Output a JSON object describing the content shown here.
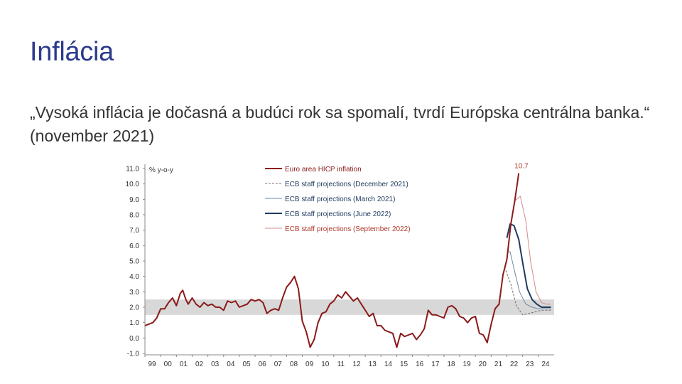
{
  "slide": {
    "title": "Inflácia",
    "quote": "„Vysoká inflácia je dočasná a budúci rok sa spomalí, tvrdí Európska centrálna banka.“ (november 2021)"
  },
  "chart_data": {
    "type": "line",
    "unit_label": "% y-o-y",
    "ylim": [
      -1.0,
      11.0
    ],
    "y_ticks": [
      "11.0",
      "10.0",
      "9.0",
      "8.0",
      "7.0",
      "6.0",
      "5.0",
      "4.0",
      "3.0",
      "2.0",
      "1.0",
      "0.0",
      "-1.0"
    ],
    "x_ticks": [
      "99",
      "00",
      "01",
      "02",
      "03",
      "04",
      "05",
      "06",
      "07",
      "08",
      "09",
      "10",
      "11",
      "12",
      "13",
      "14",
      "15",
      "16",
      "17",
      "18",
      "19",
      "20",
      "21",
      "22",
      "23",
      "24"
    ],
    "xlim": [
      1999.0,
      2025.0
    ],
    "band": {
      "from": 1.5,
      "to": 2.5,
      "color": "#d8d8d8"
    },
    "annotation": {
      "text": "10.7",
      "x": 2022.75,
      "y": 10.7,
      "color": "#b03a2e"
    },
    "legend_position": "top-center",
    "series": [
      {
        "name": "Euro area HICP inflation",
        "color": "#8b1a1a",
        "style": "solid",
        "width": 2,
        "points": [
          [
            1999.0,
            0.8
          ],
          [
            1999.25,
            0.9
          ],
          [
            1999.5,
            1.0
          ],
          [
            1999.75,
            1.3
          ],
          [
            2000.0,
            1.9
          ],
          [
            2000.25,
            1.9
          ],
          [
            2000.5,
            2.3
          ],
          [
            2000.75,
            2.6
          ],
          [
            2001.0,
            2.1
          ],
          [
            2001.25,
            2.9
          ],
          [
            2001.4,
            3.1
          ],
          [
            2001.6,
            2.5
          ],
          [
            2001.75,
            2.2
          ],
          [
            2002.0,
            2.6
          ],
          [
            2002.25,
            2.2
          ],
          [
            2002.5,
            2.0
          ],
          [
            2002.75,
            2.3
          ],
          [
            2003.0,
            2.1
          ],
          [
            2003.25,
            2.2
          ],
          [
            2003.5,
            2.0
          ],
          [
            2003.75,
            2.0
          ],
          [
            2004.0,
            1.8
          ],
          [
            2004.25,
            2.4
          ],
          [
            2004.5,
            2.3
          ],
          [
            2004.75,
            2.4
          ],
          [
            2005.0,
            2.0
          ],
          [
            2005.25,
            2.1
          ],
          [
            2005.5,
            2.2
          ],
          [
            2005.75,
            2.5
          ],
          [
            2006.0,
            2.4
          ],
          [
            2006.25,
            2.5
          ],
          [
            2006.5,
            2.3
          ],
          [
            2006.75,
            1.6
          ],
          [
            2007.0,
            1.8
          ],
          [
            2007.25,
            1.9
          ],
          [
            2007.5,
            1.8
          ],
          [
            2007.75,
            2.6
          ],
          [
            2008.0,
            3.3
          ],
          [
            2008.25,
            3.6
          ],
          [
            2008.5,
            4.0
          ],
          [
            2008.75,
            3.2
          ],
          [
            2009.0,
            1.1
          ],
          [
            2009.25,
            0.4
          ],
          [
            2009.5,
            -0.6
          ],
          [
            2009.75,
            -0.1
          ],
          [
            2010.0,
            1.0
          ],
          [
            2010.25,
            1.6
          ],
          [
            2010.5,
            1.7
          ],
          [
            2010.75,
            2.2
          ],
          [
            2011.0,
            2.4
          ],
          [
            2011.25,
            2.8
          ],
          [
            2011.5,
            2.6
          ],
          [
            2011.75,
            3.0
          ],
          [
            2012.0,
            2.7
          ],
          [
            2012.25,
            2.4
          ],
          [
            2012.5,
            2.6
          ],
          [
            2012.75,
            2.2
          ],
          [
            2013.0,
            1.8
          ],
          [
            2013.25,
            1.4
          ],
          [
            2013.5,
            1.6
          ],
          [
            2013.75,
            0.8
          ],
          [
            2014.0,
            0.8
          ],
          [
            2014.25,
            0.5
          ],
          [
            2014.5,
            0.4
          ],
          [
            2014.75,
            0.3
          ],
          [
            2015.0,
            -0.6
          ],
          [
            2015.25,
            0.3
          ],
          [
            2015.5,
            0.1
          ],
          [
            2015.75,
            0.2
          ],
          [
            2016.0,
            0.3
          ],
          [
            2016.25,
            -0.1
          ],
          [
            2016.5,
            0.2
          ],
          [
            2016.75,
            0.6
          ],
          [
            2017.0,
            1.8
          ],
          [
            2017.25,
            1.5
          ],
          [
            2017.5,
            1.5
          ],
          [
            2017.75,
            1.4
          ],
          [
            2018.0,
            1.3
          ],
          [
            2018.25,
            2.0
          ],
          [
            2018.5,
            2.1
          ],
          [
            2018.75,
            1.9
          ],
          [
            2019.0,
            1.4
          ],
          [
            2019.25,
            1.3
          ],
          [
            2019.5,
            1.0
          ],
          [
            2019.75,
            1.3
          ],
          [
            2020.0,
            1.4
          ],
          [
            2020.25,
            0.3
          ],
          [
            2020.5,
            0.2
          ],
          [
            2020.75,
            -0.3
          ],
          [
            2021.0,
            0.9
          ],
          [
            2021.25,
            1.9
          ],
          [
            2021.5,
            2.2
          ],
          [
            2021.75,
            4.1
          ],
          [
            2022.0,
            5.1
          ],
          [
            2022.25,
            7.4
          ],
          [
            2022.5,
            8.9
          ],
          [
            2022.75,
            10.7
          ]
        ]
      },
      {
        "name": "ECB staff projections (December 2021)",
        "color": "#707070",
        "style": "dashed",
        "width": 1,
        "points": [
          [
            2021.85,
            4.6
          ],
          [
            2022.25,
            3.5
          ],
          [
            2022.6,
            2.1
          ],
          [
            2023.0,
            1.5
          ],
          [
            2023.4,
            1.6
          ],
          [
            2023.8,
            1.7
          ],
          [
            2024.2,
            1.8
          ],
          [
            2024.8,
            1.8
          ]
        ]
      },
      {
        "name": "ECB staff projections (March 2021)",
        "color": "#6a8aa8",
        "style": "solid",
        "width": 1,
        "points": [
          [
            2022.0,
            5.6
          ],
          [
            2022.2,
            5.6
          ],
          [
            2022.5,
            4.3
          ],
          [
            2022.8,
            3.0
          ],
          [
            2023.2,
            2.2
          ],
          [
            2023.6,
            2.0
          ],
          [
            2024.0,
            1.9
          ],
          [
            2024.8,
            1.9
          ]
        ]
      },
      {
        "name": "ECB staff projections (June 2022)",
        "color": "#1f3a5f",
        "style": "solid",
        "width": 2,
        "points": [
          [
            2022.0,
            6.5
          ],
          [
            2022.2,
            7.4
          ],
          [
            2022.45,
            7.3
          ],
          [
            2022.75,
            6.4
          ],
          [
            2023.0,
            4.9
          ],
          [
            2023.3,
            3.2
          ],
          [
            2023.6,
            2.5
          ],
          [
            2023.9,
            2.2
          ],
          [
            2024.2,
            2.0
          ],
          [
            2024.8,
            2.0
          ]
        ]
      },
      {
        "name": "ECB staff projections (September 2022)",
        "color": "#d4898a",
        "style": "solid",
        "width": 1,
        "points": [
          [
            2022.5,
            8.9
          ],
          [
            2022.85,
            9.2
          ],
          [
            2023.2,
            7.6
          ],
          [
            2023.5,
            5.0
          ],
          [
            2023.85,
            3.0
          ],
          [
            2024.2,
            2.3
          ],
          [
            2024.5,
            2.2
          ],
          [
            2024.8,
            2.2
          ]
        ]
      }
    ]
  }
}
